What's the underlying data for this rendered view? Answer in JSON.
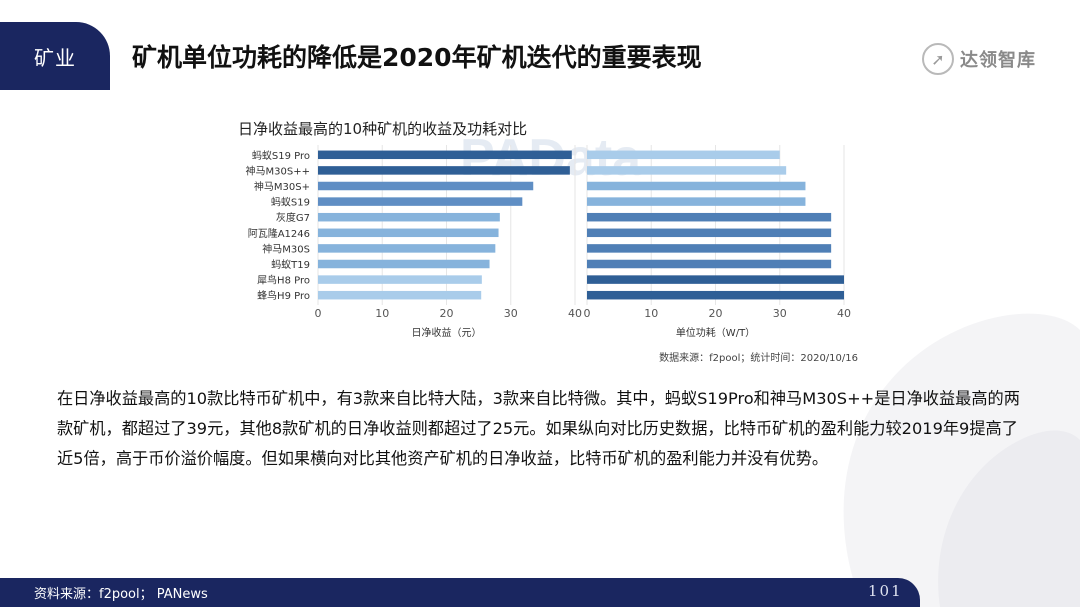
{
  "header": {
    "tag": "矿业",
    "title": "矿机单位功耗的降低是2020年矿机迭代的重要表现",
    "logo_text": "达领智库"
  },
  "chart_data": {
    "type": "bar",
    "orientation": "horizontal",
    "title": "日净收益最高的10种矿机的收益及功耗对比",
    "categories": [
      "蚂蚁S19 Pro",
      "神马M30S++",
      "神马M30S+",
      "蚂蚁S19",
      "灰度G7",
      "阿瓦隆A1246",
      "神马M30S",
      "蚂蚁T19",
      "犀鸟H8 Pro",
      "蜂鸟H9 Pro"
    ],
    "panels": [
      {
        "name": "income",
        "xlabel": "日净收益（元）",
        "xlim": [
          0,
          40
        ],
        "ticks": [
          0,
          10,
          20,
          30,
          40
        ],
        "values": [
          39.5,
          39.2,
          33.5,
          31.8,
          28.3,
          28.1,
          27.6,
          26.7,
          25.5,
          25.4
        ]
      },
      {
        "name": "power",
        "xlabel": "单位功耗（W/T）",
        "xlim": [
          0,
          40
        ],
        "ticks": [
          0,
          10,
          20,
          30,
          40
        ],
        "values": [
          30,
          31,
          34,
          34,
          38,
          38,
          38,
          38,
          40,
          40
        ]
      }
    ],
    "colors": [
      "#2f5f96",
      "#2f5f96",
      "#5f8ec4",
      "#5f8ec4",
      "#86b3dc",
      "#86b3dc",
      "#86b3dc",
      "#86b3dc",
      "#a9ccea",
      "#a9ccea"
    ],
    "power_colors": [
      "#a9ccea",
      "#a9ccea",
      "#86b3dc",
      "#86b3dc",
      "#4f7fb6",
      "#4f7fb6",
      "#4f7fb6",
      "#4f7fb6",
      "#2f5f96",
      "#2f5f96"
    ],
    "source": "数据来源：f2pool；统计时间：2020/10/16",
    "watermark": "PAData"
  },
  "body_text": "在日净收益最高的10款比特币矿机中，有3款来自比特大陆，3款来自比特微。其中，蚂蚁S19Pro和神马M30S++是日净收益最高的两款矿机，都超过了39元，其他8款矿机的日净收益则都超过了25元。如果纵向对比历史数据，比特币矿机的盈利能力较2019年9提高了近5倍，高于币价溢价幅度。但如果横向对比其他资产矿机的日净收益，比特币矿机的盈利能力并没有优势。",
  "footer": {
    "source": "资料来源：f2pool；  PANews",
    "page": "101"
  }
}
